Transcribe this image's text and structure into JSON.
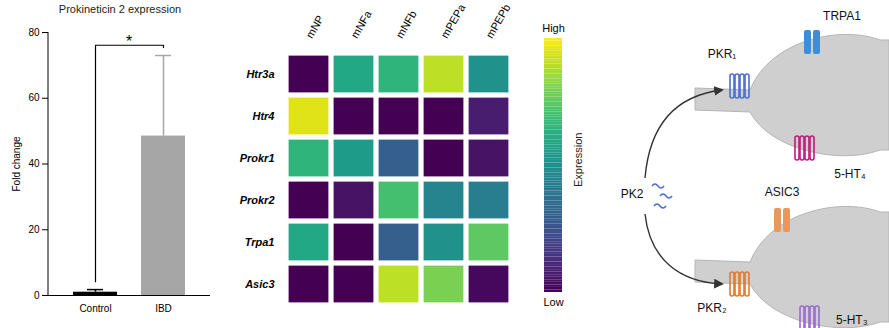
{
  "chart_data": [
    {
      "type": "bar",
      "title": "Prokineticin 2 expression",
      "categories": [
        "Control",
        "IBD"
      ],
      "values": [
        1.0,
        48.5
      ],
      "errors": [
        0.8,
        24.5
      ],
      "colors": [
        "#000000",
        "#a6a6a6"
      ],
      "ylabel": "Fold change",
      "ylim": [
        0,
        80
      ],
      "yticks": [
        0,
        20,
        40,
        60,
        80
      ],
      "annotations": [
        {
          "text": "*",
          "from": "Control",
          "to": "IBD"
        }
      ]
    },
    {
      "type": "heatmap",
      "x": [
        "mNP",
        "mNFa",
        "mNFb",
        "mPEPa",
        "mPEPb"
      ],
      "y": [
        "Htr3a",
        "Htr4",
        "Prokr1",
        "Prokr2",
        "Trpa1",
        "Asic3"
      ],
      "cells": [
        [
          0.0,
          0.6,
          0.65,
          0.9,
          0.5
        ],
        [
          0.95,
          0.0,
          0.0,
          0.0,
          0.08
        ],
        [
          0.65,
          0.55,
          0.3,
          0.0,
          0.05
        ],
        [
          0.0,
          0.05,
          0.7,
          0.45,
          0.42
        ],
        [
          0.6,
          0.0,
          0.3,
          0.5,
          0.75
        ],
        [
          0.0,
          0.0,
          0.9,
          0.8,
          0.02
        ]
      ],
      "colorbar": {
        "label": "Expression",
        "range": [
          0,
          1
        ],
        "ticks": [
          {
            "value": 0,
            "label": "Low"
          },
          {
            "value": 1,
            "label": "High"
          }
        ]
      }
    }
  ],
  "diagram": {
    "ligand": "PK2",
    "neurons": [
      {
        "receptors": [
          "PKR₁",
          "TRPA1",
          "5-HT₄"
        ]
      },
      {
        "receptors": [
          "ASIC3",
          "PKR₂",
          "5-HT₃"
        ]
      }
    ]
  }
}
